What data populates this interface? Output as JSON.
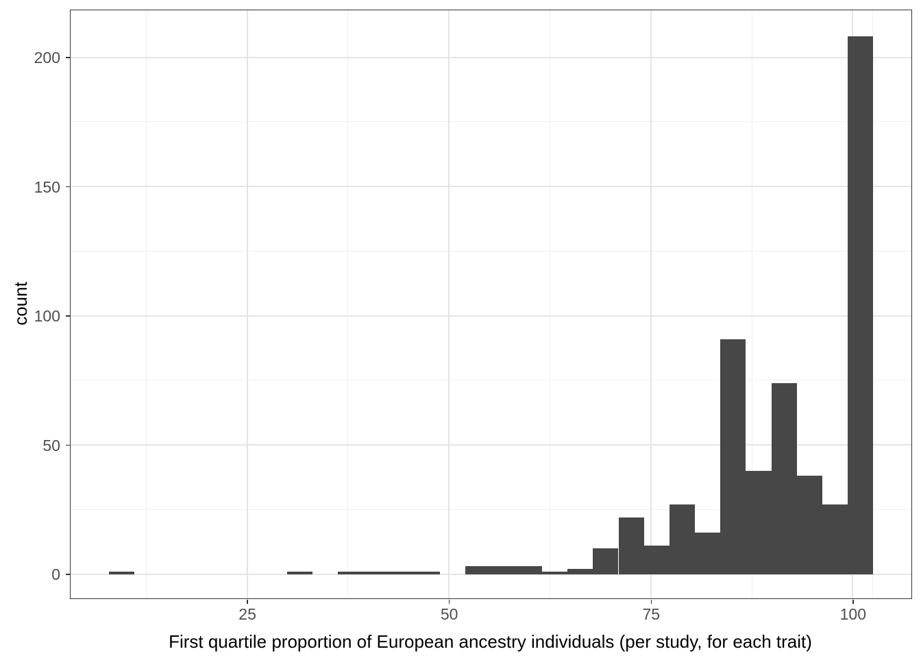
{
  "chart_data": {
    "type": "bar",
    "subtype": "histogram",
    "title": "",
    "xlabel": "First quartile proportion of European ancestry individuals (per study, for each trait)",
    "ylabel": "count",
    "bin_start": 7.87,
    "bin_width": 3.156,
    "counts": [
      1,
      0,
      0,
      0,
      0,
      0,
      0,
      1,
      0,
      1,
      1,
      1,
      1,
      0,
      3,
      3,
      3,
      1,
      2,
      10,
      22,
      11,
      27,
      16,
      91,
      40,
      74,
      38,
      27,
      208
    ],
    "total_count": 582,
    "x_ticks": [
      25,
      50,
      75,
      100
    ],
    "y_ticks": [
      0,
      50,
      100,
      150,
      200
    ],
    "x_minor_gridlines": [
      12.5,
      37.5,
      62.5,
      87.5,
      102.5
    ],
    "y_minor_gridlines": [
      25,
      75,
      125,
      175
    ],
    "xlim": [
      3.14,
      107.27
    ],
    "ylim": [
      -9.4,
      218.2
    ],
    "grid": true,
    "legend": false,
    "colors": {
      "bar_fill": "#474747",
      "grid_major": "#e4e4e4",
      "grid_minor": "#f0f0f0",
      "panel_border": "#333333",
      "tick_label": "#4d4d4d",
      "axis_title": "#000000",
      "background": "#ffffff"
    }
  }
}
